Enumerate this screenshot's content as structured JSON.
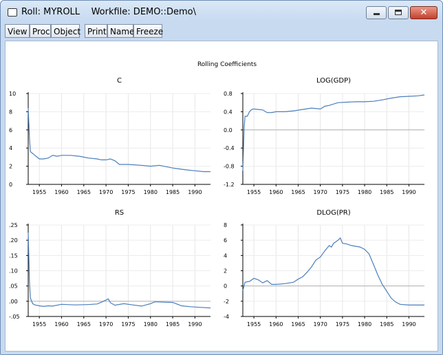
{
  "window": {
    "title": "Roll: MYROLL    Workfile: DEMO::Demo\\",
    "minimize_label": "",
    "maximize_label": "",
    "close_label": "✕"
  },
  "toolbar": {
    "buttons": [
      "View",
      "Proc",
      "Object",
      "Print",
      "Name",
      "Freeze"
    ]
  },
  "figure_title": "Rolling Coefficients",
  "accent_color": "#4a7ebb",
  "chart_data": [
    {
      "type": "line",
      "title": "C",
      "ylim": [
        0,
        10
      ],
      "yticks": [
        0,
        2,
        4,
        6,
        8,
        10
      ],
      "ytick_labels": [
        "0",
        "2",
        "4",
        "6",
        "8",
        "10"
      ],
      "xlim": [
        1952.5,
        1993.5
      ],
      "xticks": [
        1955,
        1960,
        1965,
        1970,
        1975,
        1980,
        1985,
        1990
      ],
      "zero_line": false,
      "x": [
        1952.5,
        1952.8,
        1953,
        1953.5,
        1954,
        1954.5,
        1955,
        1956,
        1957,
        1958,
        1959,
        1960,
        1962,
        1964,
        1966,
        1968,
        1969,
        1970,
        1971,
        1972,
        1973,
        1975,
        1978,
        1980,
        1982,
        1985,
        1988,
        1990,
        1992,
        1993.5
      ],
      "values": [
        8.4,
        5.0,
        3.6,
        3.4,
        3.2,
        3.0,
        2.8,
        2.8,
        2.9,
        3.2,
        3.1,
        3.2,
        3.2,
        3.1,
        2.9,
        2.8,
        2.7,
        2.7,
        2.8,
        2.6,
        2.2,
        2.2,
        2.1,
        2.0,
        2.1,
        1.8,
        1.6,
        1.5,
        1.4,
        1.4
      ]
    },
    {
      "type": "line",
      "title": "LOG(GDP)",
      "ylim": [
        -1.2,
        0.8
      ],
      "yticks": [
        -1.2,
        -0.8,
        -0.4,
        0.0,
        0.4,
        0.8
      ],
      "ytick_labels": [
        "-1.2",
        "-0.8",
        "-0.4",
        "0.0",
        "0.4",
        "0.8"
      ],
      "xlim": [
        1952.5,
        1993.5
      ],
      "xticks": [
        1955,
        1960,
        1965,
        1970,
        1975,
        1980,
        1985,
        1990
      ],
      "zero_line": true,
      "x": [
        1952.5,
        1952.8,
        1953,
        1953.5,
        1954,
        1954.5,
        1955,
        1956,
        1957,
        1958,
        1959,
        1960,
        1962,
        1964,
        1966,
        1968,
        1970,
        1971,
        1972,
        1973,
        1974,
        1976,
        1978,
        1980,
        1982,
        1984,
        1986,
        1988,
        1990,
        1992,
        1993.5
      ],
      "values": [
        -0.9,
        0.05,
        0.3,
        0.3,
        0.4,
        0.45,
        0.46,
        0.45,
        0.44,
        0.38,
        0.38,
        0.4,
        0.4,
        0.42,
        0.45,
        0.48,
        0.46,
        0.52,
        0.54,
        0.57,
        0.6,
        0.61,
        0.62,
        0.62,
        0.63,
        0.66,
        0.7,
        0.73,
        0.74,
        0.75,
        0.77
      ]
    },
    {
      "type": "line",
      "title": "RS",
      "ylim": [
        -0.05,
        0.25
      ],
      "yticks": [
        -0.05,
        0.0,
        0.05,
        0.1,
        0.15,
        0.2,
        0.25
      ],
      "ytick_labels": [
        "-.05",
        ".00",
        ".05",
        ".10",
        ".15",
        ".20",
        ".25"
      ],
      "xlim": [
        1952.5,
        1993.5
      ],
      "xticks": [
        1955,
        1960,
        1965,
        1970,
        1975,
        1980,
        1985,
        1990
      ],
      "zero_line": true,
      "x": [
        1952.5,
        1952.8,
        1953,
        1953.5,
        1954,
        1955,
        1956,
        1957,
        1958,
        1960,
        1963,
        1966,
        1968,
        1969,
        1970,
        1970.5,
        1971,
        1972,
        1974,
        1976,
        1978,
        1980,
        1981,
        1983,
        1985,
        1987,
        1989,
        1991,
        1993.5
      ],
      "values": [
        0.225,
        0.06,
        0.01,
        -0.008,
        -0.012,
        -0.015,
        -0.017,
        -0.015,
        -0.016,
        -0.01,
        -0.012,
        -0.011,
        -0.009,
        -0.003,
        0.004,
        0.008,
        -0.005,
        -0.013,
        -0.008,
        -0.012,
        -0.016,
        -0.008,
        -0.002,
        -0.003,
        -0.004,
        -0.015,
        -0.018,
        -0.02,
        -0.022
      ]
    },
    {
      "type": "line",
      "title": "DLOG(PR)",
      "ylim": [
        -4,
        8
      ],
      "yticks": [
        -4,
        -2,
        0,
        2,
        4,
        6,
        8
      ],
      "ytick_labels": [
        "-4",
        "-2",
        "0",
        "2",
        "4",
        "6",
        "8"
      ],
      "xlim": [
        1952.5,
        1993.5
      ],
      "xticks": [
        1955,
        1960,
        1965,
        1970,
        1975,
        1980,
        1985,
        1990
      ],
      "zero_line": true,
      "x": [
        1952.5,
        1953,
        1954,
        1955,
        1956,
        1957,
        1958,
        1959,
        1960,
        1962,
        1963,
        1964,
        1965,
        1966,
        1967,
        1968,
        1969,
        1970,
        1971,
        1972,
        1972.5,
        1973,
        1974,
        1974.5,
        1975,
        1976,
        1977,
        1978,
        1979,
        1980,
        1981,
        1982,
        1983,
        1984,
        1985,
        1986,
        1987,
        1988,
        1990,
        1992,
        1993.5
      ],
      "values": [
        -0.6,
        0.5,
        0.6,
        1.0,
        0.8,
        0.4,
        0.7,
        0.2,
        0.2,
        0.3,
        0.4,
        0.5,
        0.9,
        1.2,
        1.8,
        2.5,
        3.4,
        3.8,
        4.6,
        5.3,
        5.1,
        5.6,
        6.0,
        6.3,
        5.6,
        5.5,
        5.3,
        5.2,
        5.1,
        4.8,
        4.2,
        2.8,
        1.4,
        0.2,
        -0.7,
        -1.6,
        -2.1,
        -2.4,
        -2.5,
        -2.5,
        -2.5
      ]
    }
  ]
}
